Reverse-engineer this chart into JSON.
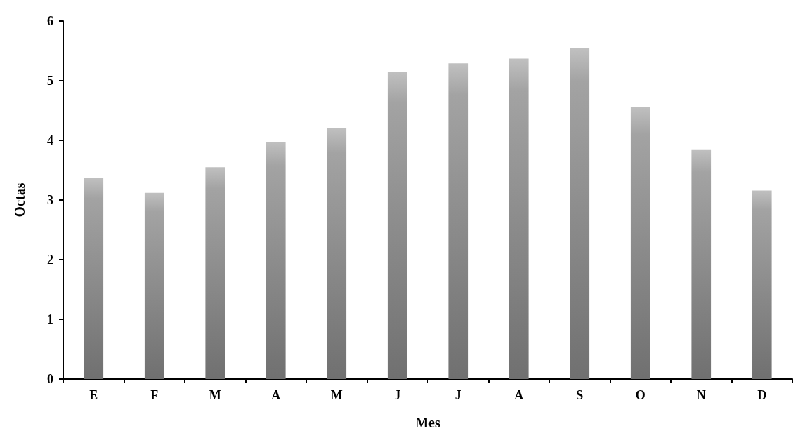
{
  "chart_data": {
    "type": "bar",
    "xlabel": "Mes",
    "ylabel": "Octas",
    "categories": [
      "E",
      "F",
      "M",
      "A",
      "M",
      "J",
      "J",
      "A",
      "S",
      "O",
      "N",
      "D"
    ],
    "values": [
      3.37,
      3.12,
      3.55,
      3.97,
      4.21,
      5.15,
      5.29,
      5.37,
      5.54,
      4.56,
      3.85,
      3.16
    ],
    "color": "#999999",
    "ylim": [
      0,
      6
    ],
    "yticks": [
      0,
      1,
      2,
      3,
      4,
      5,
      6
    ],
    "grid": false
  }
}
